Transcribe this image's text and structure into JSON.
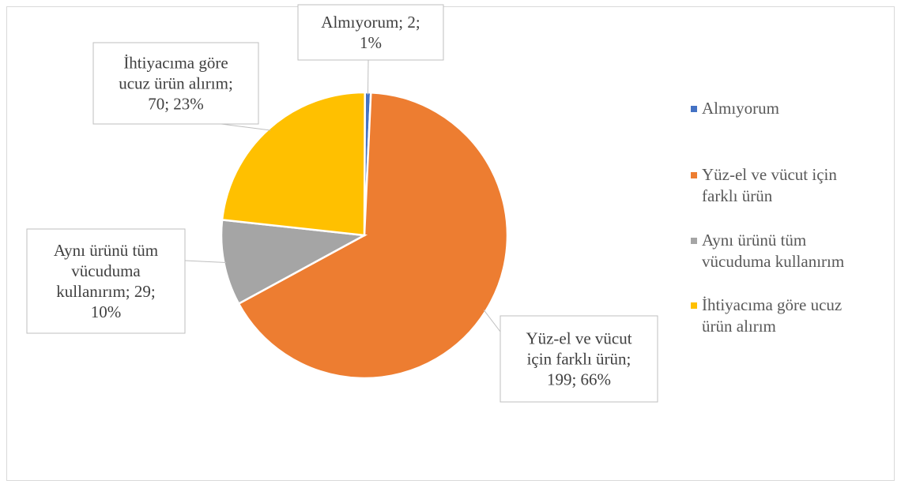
{
  "chart_data": {
    "type": "pie",
    "title": "",
    "slices": [
      {
        "name": "Almıyorum",
        "value": 2,
        "percent": "1%",
        "color": "#4472C4",
        "data_label": [
          "Almıyorum; 2;",
          "1%"
        ],
        "legend_label": [
          "Almıyorum"
        ]
      },
      {
        "name": "Yüz-el ve vücut için farklı ürün",
        "value": 199,
        "percent": "66%",
        "color": "#ED7D31",
        "data_label": [
          "Yüz-el ve vücut",
          "için farklı ürün;",
          "199; 66%"
        ],
        "legend_label": [
          "Yüz-el ve vücut için",
          "farklı ürün"
        ]
      },
      {
        "name": "Aynı ürünü tüm vücuduma kullanırım",
        "value": 29,
        "percent": "10%",
        "color": "#A5A5A5",
        "data_label": [
          "Aynı ürünü tüm",
          "vücuduma",
          "kullanırım; 29;",
          "10%"
        ],
        "legend_label": [
          "Aynı ürünü tüm",
          "vücuduma kullanırım"
        ]
      },
      {
        "name": "İhtiyacıma göre ucuz ürün alırım",
        "value": 70,
        "percent": "23%",
        "color": "#FFC000",
        "data_label": [
          "İhtiyacıma göre",
          "ucuz ürün alırım;",
          "70; 23%"
        ],
        "legend_label": [
          "İhtiyacıma göre ucuz",
          "ürün alırım"
        ]
      }
    ],
    "legend_position": "right"
  }
}
